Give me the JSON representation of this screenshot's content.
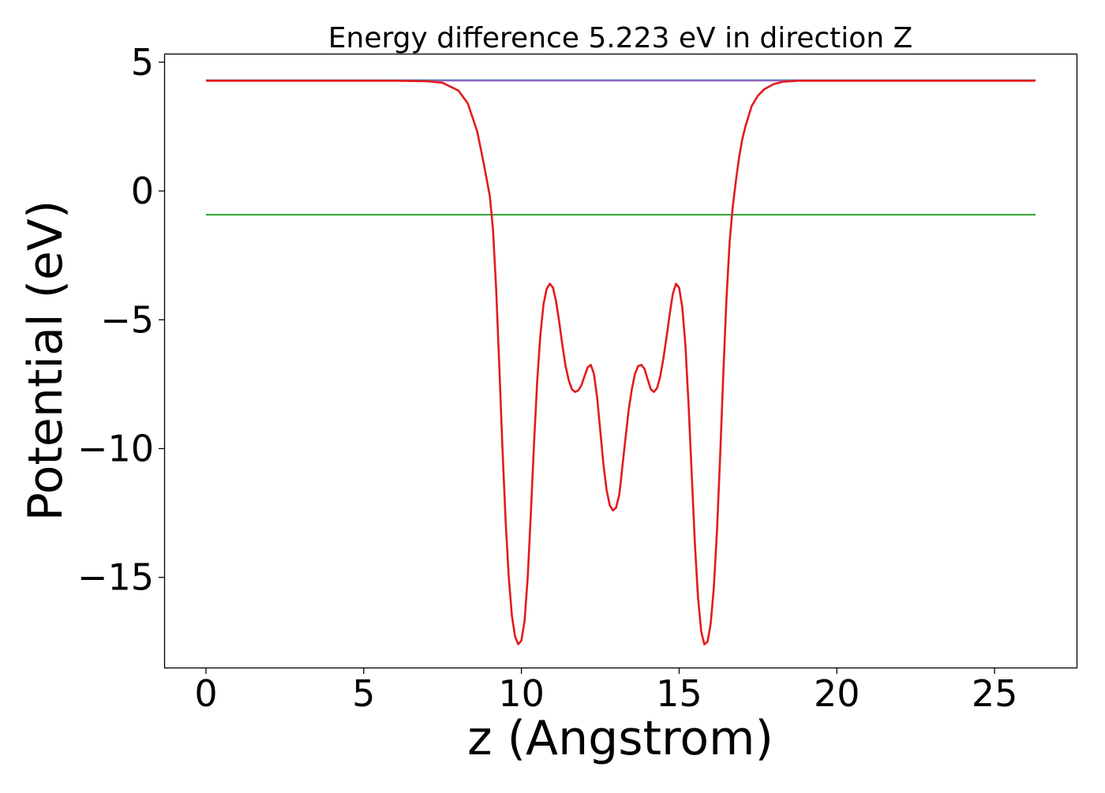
{
  "chart_data": {
    "type": "line",
    "title": "Energy difference 5.223 eV in direction Z",
    "xlabel": "z (Angstrom)",
    "ylabel": "Potential (eV)",
    "xlim": [
      -1.3,
      27.6
    ],
    "ylim": [
      -18.5,
      5.3
    ],
    "xticks": [
      0,
      5,
      10,
      15,
      20,
      25
    ],
    "xtick_labels": [
      "0",
      "5",
      "10",
      "15",
      "20",
      "25"
    ],
    "yticks": [
      5,
      0,
      -5,
      -10,
      -15
    ],
    "ytick_labels": [
      "5",
      "0",
      "−5",
      "−10",
      "−15"
    ],
    "grid": false,
    "legend": "none",
    "series": [
      {
        "color": "#1f77b4",
        "x": [
          0,
          26.3
        ],
        "y": [
          4.3,
          4.3
        ]
      },
      {
        "color": "#2ca02c",
        "x": [
          0,
          26.3
        ],
        "y": [
          -0.92,
          -0.92
        ]
      },
      {
        "color": "#9467bd",
        "x": [
          0,
          6.5,
          19.7,
          26.3
        ],
        "y": [
          4.28,
          4.28,
          4.28,
          4.28
        ]
      },
      {
        "color": "#e31a1c",
        "x": [
          0,
          2,
          4,
          6,
          7,
          7.5,
          8.0,
          8.3,
          8.6,
          8.8,
          9.0,
          9.1,
          9.2,
          9.3,
          9.4,
          9.5,
          9.6,
          9.7,
          9.8,
          9.9,
          10.0,
          10.1,
          10.2,
          10.3,
          10.4,
          10.5,
          10.6,
          10.7,
          10.8,
          10.9,
          11.0,
          11.1,
          11.2,
          11.3,
          11.4,
          11.5,
          11.6,
          11.7,
          11.8,
          11.9,
          12.0,
          12.1,
          12.2,
          12.3,
          12.4,
          12.5,
          12.6,
          12.7,
          12.8,
          12.9,
          13.0,
          13.1,
          13.15,
          13.2,
          13.3,
          13.4,
          13.5,
          13.6,
          13.7,
          13.8,
          13.9,
          14.0,
          14.1,
          14.2,
          14.3,
          14.4,
          14.5,
          14.6,
          14.7,
          14.8,
          14.9,
          15.0,
          15.1,
          15.2,
          15.3,
          15.4,
          15.5,
          15.6,
          15.7,
          15.8,
          15.9,
          16.0,
          16.1,
          16.2,
          16.3,
          16.4,
          16.5,
          16.6,
          16.7,
          16.8,
          16.9,
          17.0,
          17.1,
          17.2,
          17.3,
          17.5,
          17.7,
          18.0,
          18.3,
          18.8,
          19.3,
          20,
          22,
          24,
          26.3
        ],
        "y": [
          4.28,
          4.28,
          4.28,
          4.28,
          4.26,
          4.2,
          3.9,
          3.4,
          2.3,
          1.1,
          -0.2,
          -1.5,
          -3.8,
          -6.8,
          -10.0,
          -12.8,
          -15.0,
          -16.5,
          -17.3,
          -17.6,
          -17.45,
          -16.7,
          -15.0,
          -12.5,
          -9.8,
          -7.4,
          -5.6,
          -4.4,
          -3.8,
          -3.6,
          -3.75,
          -4.3,
          -5.1,
          -6.0,
          -6.8,
          -7.35,
          -7.7,
          -7.8,
          -7.75,
          -7.55,
          -7.2,
          -6.85,
          -6.75,
          -7.1,
          -8.0,
          -9.3,
          -10.6,
          -11.6,
          -12.2,
          -12.4,
          -12.3,
          -11.8,
          -11.3,
          -10.7,
          -9.6,
          -8.5,
          -7.7,
          -7.1,
          -6.8,
          -6.75,
          -6.9,
          -7.3,
          -7.7,
          -7.8,
          -7.65,
          -7.2,
          -6.5,
          -5.7,
          -4.8,
          -4.0,
          -3.6,
          -3.75,
          -4.5,
          -6.0,
          -8.3,
          -11.0,
          -13.7,
          -15.8,
          -17.1,
          -17.6,
          -17.5,
          -16.8,
          -15.4,
          -13.2,
          -10.3,
          -7.1,
          -4.2,
          -2.0,
          -0.6,
          0.4,
          1.3,
          2.0,
          2.5,
          2.9,
          3.3,
          3.7,
          3.95,
          4.15,
          4.24,
          4.28,
          4.28,
          4.28,
          4.28,
          4.28,
          4.28
        ]
      }
    ]
  }
}
